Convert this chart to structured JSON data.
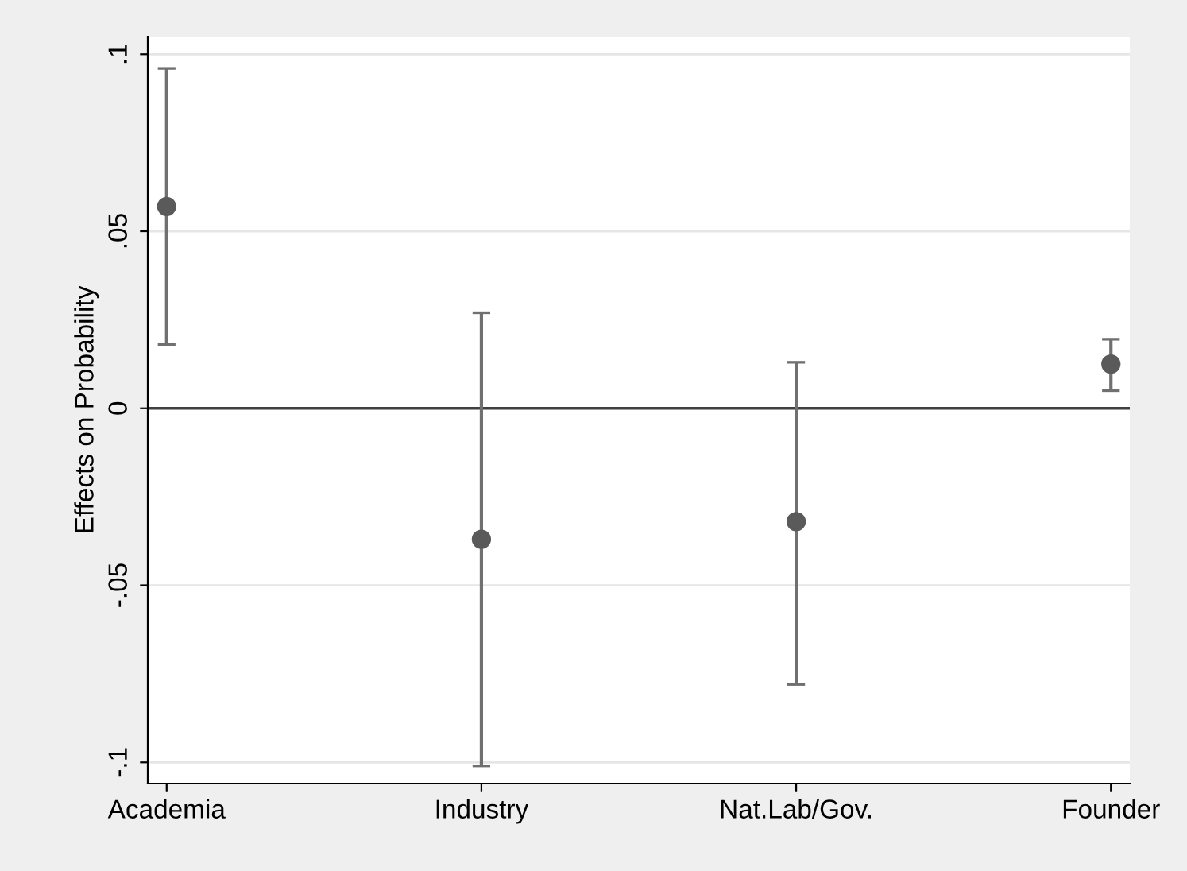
{
  "chart_data": {
    "type": "scatter",
    "ylabel": "Effects on Probability",
    "categories": [
      "Academia",
      "Industry",
      "Nat.Lab/Gov.",
      "Founder"
    ],
    "series": [
      {
        "color": "#5a5a5a",
        "values": [
          0.057,
          -0.037,
          -0.032,
          0.0125
        ],
        "errors": [
          [
            0.018,
            0.096
          ],
          [
            -0.101,
            0.027
          ],
          [
            -0.078,
            0.013
          ],
          [
            0.005,
            0.0195
          ]
        ]
      }
    ],
    "ylim": [
      -0.106,
      0.105
    ],
    "yticks": [
      {
        "value": -0.1,
        "label": "-.1"
      },
      {
        "value": -0.05,
        "label": "-.05"
      },
      0,
      {
        "value": 0.05,
        "label": ".05"
      },
      {
        "value": 0.1,
        "label": ".1"
      }
    ],
    "ref_lines": [
      {
        "axis": "y",
        "value": 0,
        "color": "#404040"
      }
    ],
    "grid": "y",
    "marker": "circle"
  }
}
